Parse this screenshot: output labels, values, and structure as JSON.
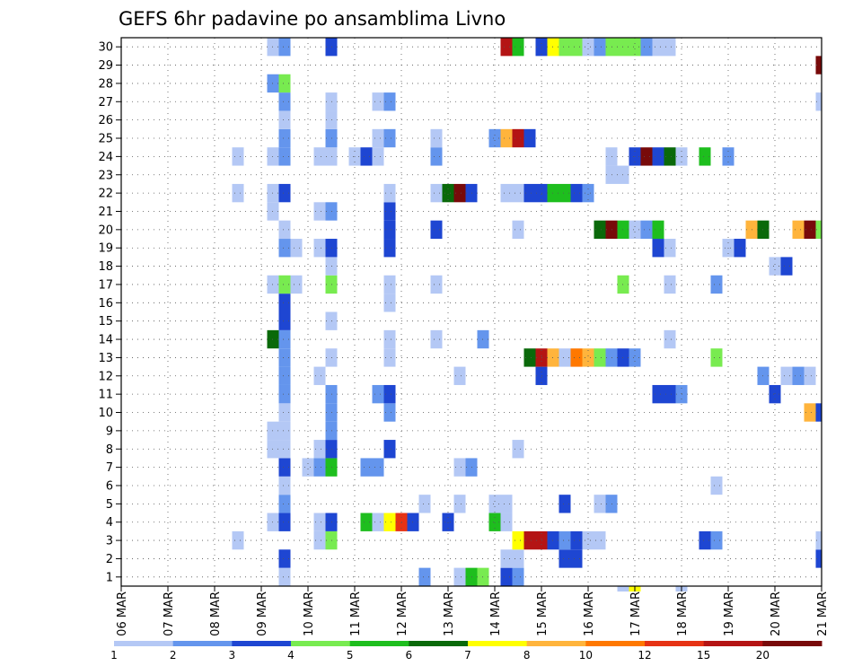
{
  "chart_data": {
    "type": "heatmap",
    "title": "GEFS 6hr padavine po ansamblima Livno",
    "ylim": [
      0.5,
      30.5
    ],
    "y_ticks": [
      "1",
      "2",
      "3",
      "4",
      "5",
      "6",
      "7",
      "8",
      "9",
      "10",
      "11",
      "12",
      "13",
      "14",
      "15",
      "16",
      "17",
      "18",
      "19",
      "20",
      "21",
      "22",
      "23",
      "24",
      "25",
      "26",
      "27",
      "28",
      "29",
      "30"
    ],
    "x_step_hours": 6,
    "x_range_steps": [
      0,
      60
    ],
    "x_ticks": [
      {
        "step": 0,
        "label": "06 MAR"
      },
      {
        "step": 4,
        "label": "07 MAR"
      },
      {
        "step": 8,
        "label": "08 MAR"
      },
      {
        "step": 12,
        "label": "09 MAR"
      },
      {
        "step": 16,
        "label": "10 MAR"
      },
      {
        "step": 20,
        "label": "11 MAR"
      },
      {
        "step": 24,
        "label": "12 MAR"
      },
      {
        "step": 28,
        "label": "13 MAR"
      },
      {
        "step": 32,
        "label": "14 MAR"
      },
      {
        "step": 36,
        "label": "15 MAR"
      },
      {
        "step": 40,
        "label": "16 MAR"
      },
      {
        "step": 44,
        "label": "17 MAR"
      },
      {
        "step": 48,
        "label": "18 MAR"
      },
      {
        "step": 52,
        "label": "19 MAR"
      },
      {
        "step": 56,
        "label": "20 MAR"
      },
      {
        "step": 60,
        "label": "21 MAR"
      }
    ],
    "grid": true,
    "legend": {
      "position": "bottom",
      "colors": [
        "#b4c8f5",
        "#6495ed",
        "#1e46d2",
        "#78eb50",
        "#1ebe1e",
        "#0a690a",
        "#ffff00",
        "#ffb43c",
        "#ff7800",
        "#e63214",
        "#b41414",
        "#780a0a"
      ],
      "labels": [
        "1",
        "2",
        "3",
        "4",
        "5",
        "6",
        "7",
        "8",
        "10",
        "12",
        "15",
        "20"
      ]
    },
    "cells": [
      [
        1,
        14,
        1
      ],
      [
        1,
        26,
        2
      ],
      [
        1,
        29,
        1
      ],
      [
        1,
        30,
        5
      ],
      [
        1,
        31,
        4
      ],
      [
        1,
        33,
        3
      ],
      [
        1,
        34,
        2
      ],
      [
        2,
        14,
        3
      ],
      [
        2,
        33,
        1
      ],
      [
        2,
        34,
        1
      ],
      [
        2,
        38,
        3
      ],
      [
        2,
        39,
        3
      ],
      [
        2,
        60,
        3
      ],
      [
        3,
        10,
        1
      ],
      [
        3,
        17,
        1
      ],
      [
        3,
        18,
        4
      ],
      [
        3,
        34,
        7
      ],
      [
        3,
        35,
        11
      ],
      [
        3,
        36,
        11
      ],
      [
        3,
        37,
        3
      ],
      [
        3,
        38,
        2
      ],
      [
        3,
        39,
        3
      ],
      [
        3,
        40,
        1
      ],
      [
        3,
        41,
        1
      ],
      [
        3,
        50,
        3
      ],
      [
        3,
        51,
        2
      ],
      [
        3,
        60,
        1
      ],
      [
        4,
        13,
        1
      ],
      [
        4,
        14,
        3
      ],
      [
        4,
        17,
        1
      ],
      [
        4,
        18,
        3
      ],
      [
        4,
        21,
        5
      ],
      [
        4,
        22,
        1
      ],
      [
        4,
        23,
        7
      ],
      [
        4,
        24,
        10
      ],
      [
        4,
        25,
        3
      ],
      [
        4,
        28,
        3
      ],
      [
        4,
        32,
        5
      ],
      [
        4,
        33,
        1
      ],
      [
        5,
        14,
        2
      ],
      [
        5,
        26,
        1
      ],
      [
        5,
        29,
        1
      ],
      [
        5,
        32,
        1
      ],
      [
        5,
        33,
        1
      ],
      [
        5,
        38,
        3
      ],
      [
        5,
        41,
        1
      ],
      [
        5,
        42,
        2
      ],
      [
        6,
        14,
        1
      ],
      [
        6,
        51,
        1
      ],
      [
        7,
        14,
        3
      ],
      [
        7,
        16,
        1
      ],
      [
        7,
        17,
        2
      ],
      [
        7,
        18,
        5
      ],
      [
        7,
        21,
        2
      ],
      [
        7,
        22,
        2
      ],
      [
        7,
        29,
        1
      ],
      [
        7,
        30,
        2
      ],
      [
        8,
        13,
        1
      ],
      [
        8,
        14,
        1
      ],
      [
        8,
        17,
        1
      ],
      [
        8,
        18,
        3
      ],
      [
        8,
        23,
        3
      ],
      [
        8,
        34,
        1
      ],
      [
        9,
        13,
        1
      ],
      [
        9,
        14,
        1
      ],
      [
        9,
        18,
        2
      ],
      [
        10,
        14,
        1
      ],
      [
        10,
        18,
        2
      ],
      [
        10,
        23,
        2
      ],
      [
        10,
        59,
        8
      ],
      [
        10,
        60,
        3
      ],
      [
        11,
        14,
        2
      ],
      [
        11,
        18,
        2
      ],
      [
        11,
        22,
        2
      ],
      [
        11,
        23,
        3
      ],
      [
        11,
        46,
        3
      ],
      [
        11,
        47,
        3
      ],
      [
        11,
        48,
        2
      ],
      [
        11,
        56,
        3
      ],
      [
        12,
        14,
        2
      ],
      [
        12,
        17,
        1
      ],
      [
        12,
        29,
        1
      ],
      [
        12,
        36,
        3
      ],
      [
        12,
        55,
        2
      ],
      [
        12,
        57,
        1
      ],
      [
        12,
        58,
        2
      ],
      [
        12,
        59,
        1
      ],
      [
        13,
        14,
        2
      ],
      [
        13,
        18,
        1
      ],
      [
        13,
        23,
        1
      ],
      [
        13,
        35,
        6
      ],
      [
        13,
        36,
        11
      ],
      [
        13,
        37,
        8
      ],
      [
        13,
        38,
        1
      ],
      [
        13,
        39,
        9
      ],
      [
        13,
        40,
        8
      ],
      [
        13,
        41,
        4
      ],
      [
        13,
        42,
        2
      ],
      [
        13,
        43,
        3
      ],
      [
        13,
        44,
        2
      ],
      [
        13,
        51,
        4
      ],
      [
        14,
        13,
        6
      ],
      [
        14,
        14,
        2
      ],
      [
        14,
        23,
        1
      ],
      [
        14,
        27,
        1
      ],
      [
        14,
        31,
        2
      ],
      [
        14,
        47,
        1
      ],
      [
        15,
        14,
        3
      ],
      [
        15,
        18,
        1
      ],
      [
        16,
        14,
        3
      ],
      [
        16,
        23,
        1
      ],
      [
        17,
        13,
        1
      ],
      [
        17,
        14,
        4
      ],
      [
        17,
        15,
        1
      ],
      [
        17,
        18,
        4
      ],
      [
        17,
        23,
        1
      ],
      [
        17,
        27,
        1
      ],
      [
        17,
        43,
        4
      ],
      [
        17,
        47,
        1
      ],
      [
        17,
        51,
        2
      ],
      [
        18,
        18,
        1
      ],
      [
        18,
        56,
        1
      ],
      [
        18,
        57,
        3
      ],
      [
        19,
        14,
        2
      ],
      [
        19,
        15,
        1
      ],
      [
        19,
        17,
        1
      ],
      [
        19,
        18,
        3
      ],
      [
        19,
        23,
        3
      ],
      [
        19,
        46,
        3
      ],
      [
        19,
        47,
        1
      ],
      [
        19,
        52,
        1
      ],
      [
        19,
        53,
        3
      ],
      [
        20,
        14,
        1
      ],
      [
        20,
        23,
        3
      ],
      [
        20,
        27,
        3
      ],
      [
        20,
        34,
        1
      ],
      [
        20,
        41,
        6
      ],
      [
        20,
        42,
        12
      ],
      [
        20,
        43,
        5
      ],
      [
        20,
        44,
        1
      ],
      [
        20,
        45,
        2
      ],
      [
        20,
        46,
        5
      ],
      [
        20,
        54,
        8
      ],
      [
        20,
        55,
        6
      ],
      [
        20,
        58,
        8
      ],
      [
        20,
        59,
        12
      ],
      [
        20,
        60,
        4
      ],
      [
        21,
        13,
        1
      ],
      [
        21,
        17,
        1
      ],
      [
        21,
        18,
        2
      ],
      [
        21,
        23,
        3
      ],
      [
        22,
        10,
        1
      ],
      [
        22,
        13,
        1
      ],
      [
        22,
        14,
        3
      ],
      [
        22,
        23,
        1
      ],
      [
        22,
        27,
        1
      ],
      [
        22,
        28,
        6
      ],
      [
        22,
        29,
        12
      ],
      [
        22,
        30,
        3
      ],
      [
        22,
        33,
        1
      ],
      [
        22,
        34,
        1
      ],
      [
        22,
        35,
        3
      ],
      [
        22,
        36,
        3
      ],
      [
        22,
        37,
        5
      ],
      [
        22,
        38,
        5
      ],
      [
        22,
        39,
        3
      ],
      [
        22,
        40,
        2
      ],
      [
        23,
        42,
        1
      ],
      [
        23,
        43,
        1
      ],
      [
        24,
        10,
        1
      ],
      [
        24,
        13,
        1
      ],
      [
        24,
        14,
        2
      ],
      [
        24,
        17,
        1
      ],
      [
        24,
        18,
        1
      ],
      [
        24,
        20,
        1
      ],
      [
        24,
        21,
        3
      ],
      [
        24,
        22,
        1
      ],
      [
        24,
        27,
        2
      ],
      [
        24,
        42,
        1
      ],
      [
        24,
        44,
        3
      ],
      [
        24,
        45,
        12
      ],
      [
        24,
        46,
        3
      ],
      [
        24,
        47,
        6
      ],
      [
        24,
        48,
        1
      ],
      [
        24,
        50,
        5
      ],
      [
        24,
        52,
        2
      ],
      [
        25,
        14,
        2
      ],
      [
        25,
        18,
        2
      ],
      [
        25,
        22,
        1
      ],
      [
        25,
        23,
        2
      ],
      [
        25,
        27,
        1
      ],
      [
        25,
        32,
        2
      ],
      [
        25,
        33,
        8
      ],
      [
        25,
        34,
        11
      ],
      [
        25,
        35,
        3
      ],
      [
        26,
        14,
        1
      ],
      [
        26,
        18,
        1
      ],
      [
        27,
        14,
        2
      ],
      [
        27,
        18,
        1
      ],
      [
        27,
        22,
        1
      ],
      [
        27,
        23,
        2
      ],
      [
        27,
        60,
        1
      ],
      [
        28,
        13,
        2
      ],
      [
        28,
        14,
        4
      ],
      [
        29,
        60,
        12
      ],
      [
        30,
        13,
        1
      ],
      [
        30,
        14,
        2
      ],
      [
        30,
        18,
        3
      ],
      [
        30,
        33,
        11
      ],
      [
        30,
        34,
        5
      ],
      [
        30,
        36,
        3
      ],
      [
        30,
        37,
        7
      ],
      [
        30,
        38,
        4
      ],
      [
        30,
        39,
        4
      ],
      [
        30,
        40,
        1
      ],
      [
        30,
        41,
        2
      ],
      [
        30,
        42,
        4
      ],
      [
        30,
        43,
        4
      ],
      [
        30,
        44,
        4
      ],
      [
        30,
        45,
        2
      ],
      [
        30,
        46,
        1
      ],
      [
        30,
        47,
        1
      ],
      [
        0,
        43,
        1
      ],
      [
        0,
        44,
        7
      ],
      [
        0,
        48,
        1
      ]
    ]
  }
}
